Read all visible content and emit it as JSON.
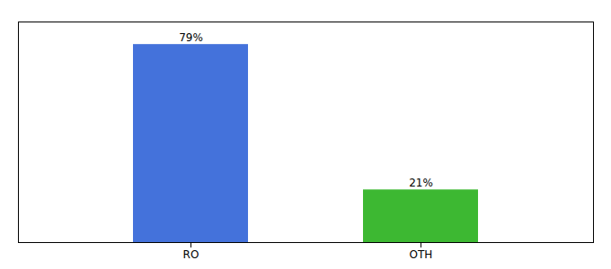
{
  "chart_data": {
    "type": "bar",
    "categories": [
      "RO",
      "OTH"
    ],
    "values": [
      79,
      21
    ],
    "value_labels": [
      "79%",
      "21%"
    ],
    "colors": [
      "#4472db",
      "#3db832"
    ],
    "ylim": [
      0,
      88
    ],
    "data_labels": true,
    "tick_labels": "x",
    "grid": false
  }
}
